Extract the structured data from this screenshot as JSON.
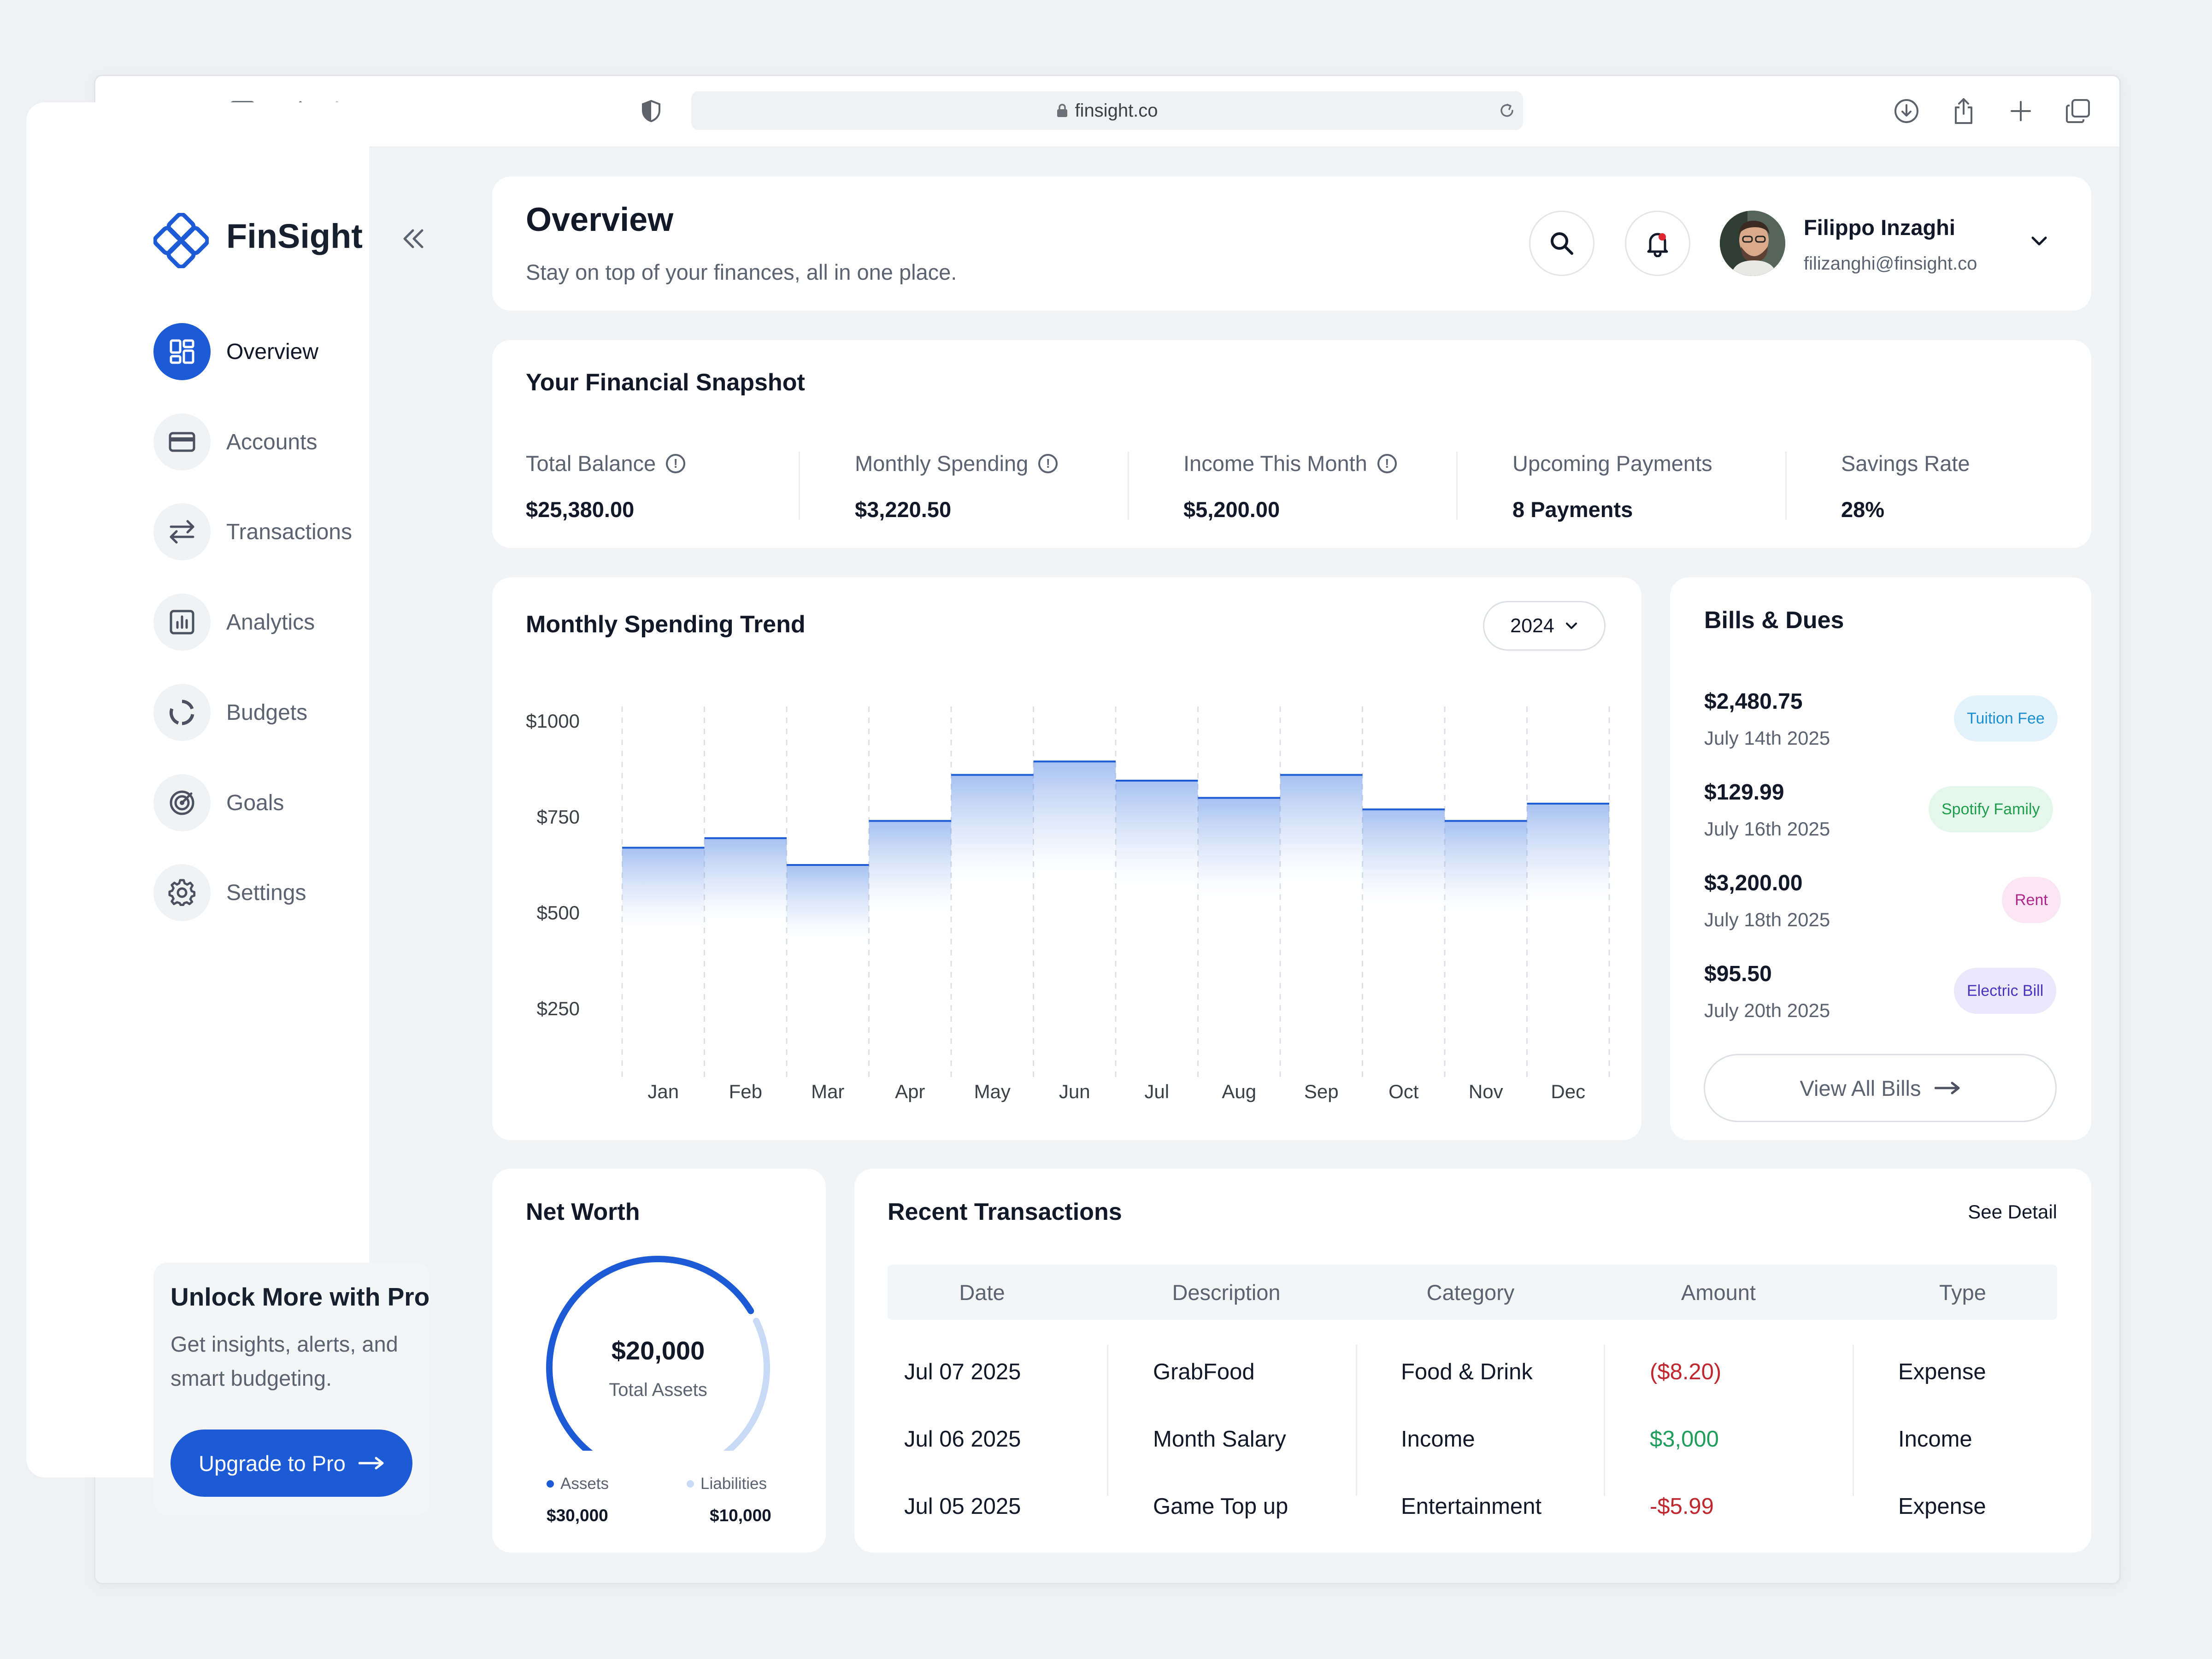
{
  "browser": {
    "url": "finsight.co"
  },
  "app": {
    "logo": "FinSight"
  },
  "sidebar": {
    "items": [
      {
        "label": "Overview",
        "icon": "grid-icon",
        "active": true
      },
      {
        "label": "Accounts",
        "icon": "card-icon",
        "active": false
      },
      {
        "label": "Transactions",
        "icon": "swap-icon",
        "active": false
      },
      {
        "label": "Analytics",
        "icon": "bar-chart-icon",
        "active": false
      },
      {
        "label": "Budgets",
        "icon": "donut-icon",
        "active": false
      },
      {
        "label": "Goals",
        "icon": "target-icon",
        "active": false
      },
      {
        "label": "Settings",
        "icon": "gear-icon",
        "active": false
      }
    ],
    "promo": {
      "title": "Unlock More with Pro",
      "text": "Get insights, alerts, and smart budgeting.",
      "button": "Upgrade to Pro"
    }
  },
  "header": {
    "title": "Overview",
    "subtitle": "Stay on top of your finances, all in one place.",
    "user": {
      "name": "Filippo Inzaghi",
      "email": "filizanghi@finsight.co"
    }
  },
  "snapshot": {
    "title": "Your Financial Snapshot",
    "items": [
      {
        "label": "Total Balance",
        "value": "$25,380.00",
        "info": true
      },
      {
        "label": "Monthly Spending",
        "value": "$3,220.50",
        "info": true
      },
      {
        "label": "Income This Month",
        "value": "$5,200.00",
        "info": true
      },
      {
        "label": "Upcoming Payments",
        "value": "8 Payments",
        "info": false
      },
      {
        "label": "Savings Rate",
        "value": "28%",
        "info": false
      }
    ]
  },
  "spending": {
    "title": "Monthly Spending Trend",
    "year": "2024"
  },
  "chart_data": {
    "type": "area",
    "title": "Monthly Spending Trend",
    "categories": [
      "Jan",
      "Feb",
      "Mar",
      "Apr",
      "May",
      "Jun",
      "Jul",
      "Aug",
      "Sep",
      "Oct",
      "Nov",
      "Dec"
    ],
    "values": [
      670,
      695,
      625,
      740,
      860,
      895,
      845,
      800,
      860,
      770,
      740,
      785
    ],
    "y_ticks": [
      "$1000",
      "$750",
      "$500",
      "$250"
    ],
    "ylim": [
      150,
      1000
    ],
    "color": "#1d5bd6",
    "grid": "vertical dashed"
  },
  "bills": {
    "title": "Bills & Dues",
    "items": [
      {
        "amount": "$2,480.75",
        "date": "July 14th 2025",
        "tag": "Tuition Fee",
        "bg": "#e3f2fb",
        "fg": "#1b8fd0"
      },
      {
        "amount": "$129.99",
        "date": "July 16th 2025",
        "tag": "Spotify Family",
        "bg": "#e4f7ea",
        "fg": "#1f9d4f"
      },
      {
        "amount": "$3,200.00",
        "date": "July 18th 2025",
        "tag": "Rent",
        "bg": "#fbe6f4",
        "fg": "#b1288a"
      },
      {
        "amount": "$95.50",
        "date": "July 20th 2025",
        "tag": "Electric Bill",
        "bg": "#ebe8fb",
        "fg": "#4a35c2"
      }
    ],
    "view_all": "View All Bills"
  },
  "net_worth": {
    "title": "Net Worth",
    "total": "$20,000",
    "total_label": "Total Assets",
    "assets_label": "Assets",
    "assets_value": "$30,000",
    "liabilities_label": "Liabilities",
    "liabilities_value": "$10,000",
    "asset_share": 0.75,
    "colors": {
      "assets": "#1d5bd6",
      "liabilities": "#c9daf7"
    }
  },
  "transactions": {
    "title": "Recent Transactions",
    "see_detail": "See Detail",
    "columns": [
      "Date",
      "Description",
      "Category",
      "Amount",
      "Type"
    ],
    "rows": [
      {
        "date": "Jul 07 2025",
        "description": "GrabFood",
        "category": "Food & Drink",
        "amount": "($8.20)",
        "amount_color": "#c0262d",
        "type": "Expense"
      },
      {
        "date": "Jul 06 2025",
        "description": "Month Salary",
        "category": "Income",
        "amount": "$3,000",
        "amount_color": "#1f9d5c",
        "type": "Income"
      },
      {
        "date": "Jul 05 2025",
        "description": "Game Top up",
        "category": "Entertainment",
        "amount": "-$5.99",
        "amount_color": "#c0262d",
        "type": "Expense"
      }
    ]
  }
}
